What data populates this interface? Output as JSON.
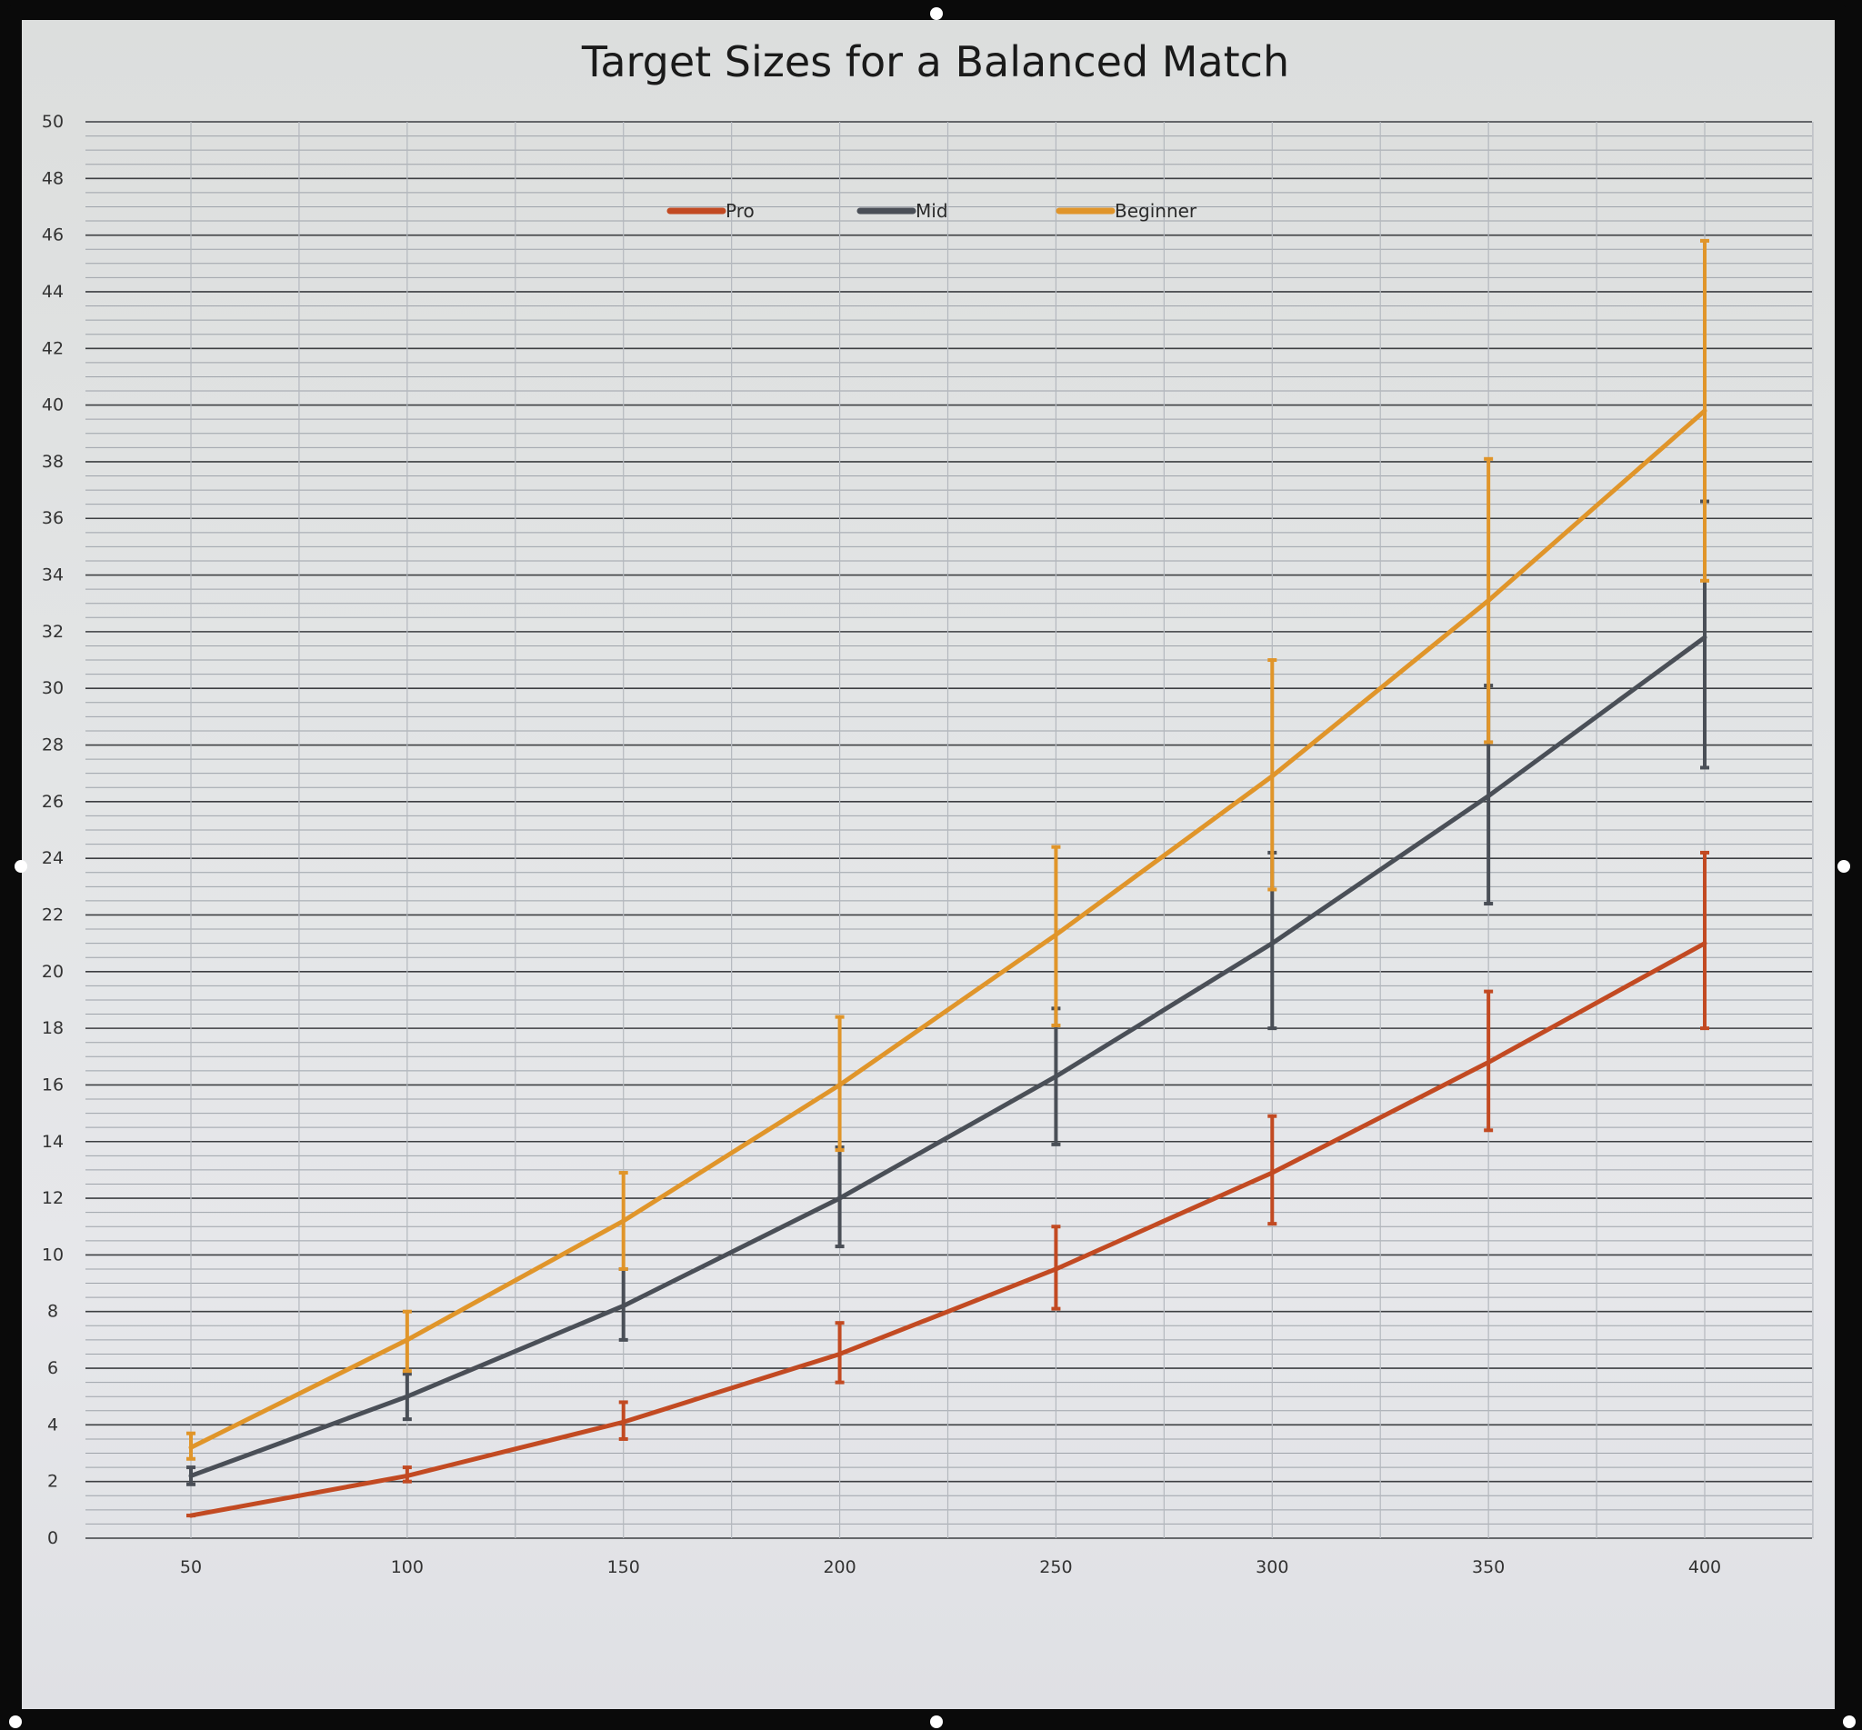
{
  "chart_data": {
    "type": "line",
    "title": "Target Sizes for a Balanced Match",
    "xlabel": "",
    "ylabel": "",
    "categories": [
      "50",
      "100",
      "150",
      "200",
      "250",
      "300",
      "350",
      "400"
    ],
    "ylim": [
      0,
      50
    ],
    "y_ticks": [
      0,
      2,
      4,
      6,
      8,
      10,
      12,
      14,
      16,
      18,
      20,
      22,
      24,
      26,
      28,
      30,
      32,
      34,
      36,
      38,
      40,
      42,
      44,
      46,
      48,
      50
    ],
    "y_tick_labels": [
      "0",
      "2",
      "4",
      "6",
      "8",
      "10",
      "12",
      "14",
      "16",
      "18",
      "20",
      "22",
      "24",
      "26",
      "28",
      "30",
      "32",
      "34",
      "36",
      "38",
      "40",
      "42",
      "44",
      "46",
      "48",
      "50"
    ],
    "grid": true,
    "legend_position": "top-center",
    "error_bars": true,
    "series": [
      {
        "name": "Pro",
        "color": "#c24a22",
        "values": [
          0.8,
          2.2,
          4.1,
          6.5,
          9.5,
          12.9,
          16.8,
          21.0
        ],
        "err_low": [
          0.8,
          2.0,
          3.5,
          5.5,
          8.1,
          11.1,
          14.4,
          18.0
        ],
        "err_high": [
          0.8,
          2.5,
          4.8,
          7.6,
          11.0,
          14.9,
          19.3,
          24.2
        ]
      },
      {
        "name": "Mid",
        "color": "#4a4f57",
        "values": [
          2.2,
          5.0,
          8.2,
          12.0,
          16.3,
          21.0,
          26.2,
          31.8
        ],
        "err_low": [
          1.9,
          4.2,
          7.0,
          10.3,
          13.9,
          18.0,
          22.4,
          27.2
        ],
        "err_high": [
          2.5,
          5.8,
          9.5,
          13.8,
          18.7,
          24.2,
          30.1,
          36.6
        ]
      },
      {
        "name": "Beginner",
        "color": "#e0952a",
        "values": [
          3.2,
          7.0,
          11.2,
          16.0,
          21.3,
          26.9,
          33.1,
          39.8
        ],
        "err_low": [
          2.8,
          5.9,
          9.5,
          13.7,
          18.1,
          22.9,
          28.1,
          33.8
        ],
        "err_high": [
          3.7,
          8.0,
          12.9,
          18.4,
          24.4,
          31.0,
          38.1,
          45.8
        ]
      }
    ]
  }
}
